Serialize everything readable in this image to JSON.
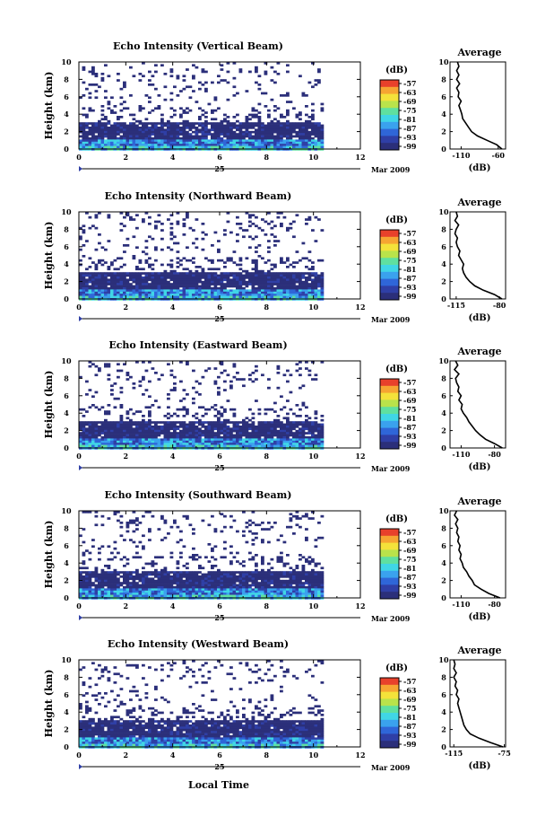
{
  "chart_data": [
    {
      "type": "heatmap",
      "title": "Echo Intensity (Vertical Beam)",
      "ylabel": "Height (km)",
      "xlim": [
        0,
        12
      ],
      "ylim": [
        0,
        10
      ],
      "xticks": [
        "0",
        "2",
        "4",
        "6",
        "8",
        "10",
        "12"
      ],
      "yticks": [
        "0",
        "2",
        "4",
        "6",
        "8",
        "10"
      ],
      "day_label": "25",
      "date_label": "Mar 2009",
      "colorbar": {
        "unit": "(dB)",
        "ticks": [
          "-57",
          "-63",
          "-69",
          "-75",
          "-81",
          "-87",
          "-93",
          "-99"
        ]
      },
      "profile": {
        "title": "Average",
        "xlabel": "(dB)",
        "xlim": [
          -125,
          -50
        ],
        "xticks": [
          "-110",
          "-60"
        ],
        "heights": [
          0,
          0.5,
          1,
          1.5,
          2,
          2.5,
          3,
          3.5,
          4,
          4.5,
          5,
          5.5,
          6,
          6.5,
          7,
          7.5,
          8,
          8.5,
          9,
          9.5,
          10
        ],
        "values": [
          -55,
          -62,
          -75,
          -88,
          -96,
          -100,
          -104,
          -108,
          -109,
          -111,
          -113,
          -110,
          -114,
          -113,
          -116,
          -112,
          -116,
          -113,
          -116,
          -113,
          -115
        ]
      }
    },
    {
      "type": "heatmap",
      "title": "Echo Intensity (Northward Beam)",
      "ylabel": "Height (km)",
      "xlim": [
        0,
        12
      ],
      "ylim": [
        0,
        10
      ],
      "xticks": [
        "0",
        "2",
        "4",
        "6",
        "8",
        "10",
        "12"
      ],
      "yticks": [
        "0",
        "2",
        "4",
        "6",
        "8",
        "10"
      ],
      "day_label": "25",
      "date_label": "Mar 2009",
      "colorbar": {
        "unit": "(dB)",
        "ticks": [
          "-57",
          "-63",
          "-69",
          "-75",
          "-81",
          "-87",
          "-93",
          "-99"
        ]
      },
      "profile": {
        "title": "Average",
        "xlabel": "(dB)",
        "xlim": [
          -120,
          -75
        ],
        "xticks": [
          "-115",
          "-80"
        ],
        "heights": [
          0,
          0.5,
          1,
          1.5,
          2,
          2.5,
          3,
          3.5,
          4,
          4.5,
          5,
          5.5,
          6,
          6.5,
          7,
          7.5,
          8,
          8.5,
          9,
          9.5,
          10
        ],
        "values": [
          -78,
          -84,
          -93,
          -100,
          -104,
          -107,
          -109,
          -110,
          -109,
          -111,
          -113,
          -112,
          -114,
          -115,
          -114,
          -116,
          -115,
          -113,
          -116,
          -114,
          -115
        ]
      }
    },
    {
      "type": "heatmap",
      "title": "Echo Intensity (Eastward Beam)",
      "ylabel": "Height (km)",
      "xlim": [
        0,
        12
      ],
      "ylim": [
        0,
        10
      ],
      "xticks": [
        "0",
        "2",
        "4",
        "6",
        "8",
        "10",
        "12"
      ],
      "yticks": [
        "0",
        "2",
        "4",
        "6",
        "8",
        "10"
      ],
      "day_label": "25",
      "date_label": "Mar 2009",
      "colorbar": {
        "unit": "(dB)",
        "ticks": [
          "-57",
          "-63",
          "-69",
          "-75",
          "-81",
          "-87",
          "-93",
          "-99"
        ]
      },
      "profile": {
        "title": "Average",
        "xlabel": "(dB)",
        "xlim": [
          -120,
          -70
        ],
        "xticks": [
          "-110",
          "-80"
        ],
        "heights": [
          0,
          0.5,
          1,
          1.5,
          2,
          2.5,
          3,
          3.5,
          4,
          4.5,
          5,
          5.5,
          6,
          6.5,
          7,
          7.5,
          8,
          8.5,
          9,
          9.5,
          10
        ],
        "values": [
          -73,
          -80,
          -88,
          -93,
          -97,
          -100,
          -103,
          -105,
          -108,
          -110,
          -109,
          -112,
          -110,
          -113,
          -112,
          -114,
          -115,
          -112,
          -116,
          -113,
          -115
        ]
      }
    },
    {
      "type": "heatmap",
      "title": "Echo Intensity (Southward Beam)",
      "ylabel": "Height (km)",
      "xlim": [
        0,
        12
      ],
      "ylim": [
        0,
        10
      ],
      "xticks": [
        "0",
        "2",
        "4",
        "6",
        "8",
        "10",
        "12"
      ],
      "yticks": [
        "0",
        "2",
        "4",
        "6",
        "8",
        "10"
      ],
      "day_label": "25",
      "date_label": "Mar 2009",
      "colorbar": {
        "unit": "(dB)",
        "ticks": [
          "-57",
          "-63",
          "-69",
          "-75",
          "-81",
          "-87",
          "-93",
          "-99"
        ]
      },
      "profile": {
        "title": "Average",
        "xlabel": "(dB)",
        "xlim": [
          -120,
          -70
        ],
        "xticks": [
          "-110",
          "-80"
        ],
        "heights": [
          0,
          0.5,
          1,
          1.5,
          2,
          2.5,
          3,
          3.5,
          4,
          4.5,
          5,
          5.5,
          6,
          6.5,
          7,
          7.5,
          8,
          8.5,
          9,
          9.5,
          10
        ],
        "values": [
          -75,
          -85,
          -92,
          -98,
          -100,
          -103,
          -105,
          -108,
          -109,
          -111,
          -110,
          -112,
          -111,
          -113,
          -112,
          -114,
          -113,
          -115,
          -113,
          -116,
          -114
        ]
      }
    },
    {
      "type": "heatmap",
      "title": "Echo Intensity (Westward Beam)",
      "ylabel": "Height (km)",
      "xlim": [
        0,
        12
      ],
      "ylim": [
        0,
        10
      ],
      "xticks": [
        "0",
        "2",
        "4",
        "6",
        "8",
        "10",
        "12"
      ],
      "yticks": [
        "0",
        "2",
        "4",
        "6",
        "8",
        "10"
      ],
      "day_label": "25",
      "date_label": "Mar 2009",
      "colorbar": {
        "unit": "(dB)",
        "ticks": [
          "-57",
          "-63",
          "-69",
          "-75",
          "-81",
          "-87",
          "-93",
          "-99"
        ]
      },
      "profile": {
        "title": "Average",
        "xlabel": "(dB)",
        "xlim": [
          -118,
          -74
        ],
        "xticks": [
          "-115",
          "-75"
        ],
        "heights": [
          0,
          0.5,
          1,
          1.5,
          2,
          2.5,
          3,
          3.5,
          4,
          4.5,
          5,
          5.5,
          6,
          6.5,
          7,
          7.5,
          8,
          8.5,
          9,
          9.5,
          10
        ],
        "values": [
          -76,
          -86,
          -95,
          -102,
          -105,
          -107,
          -108,
          -109,
          -110,
          -111,
          -112,
          -111,
          -113,
          -112,
          -114,
          -113,
          -115,
          -113,
          -115,
          -114,
          -115
        ]
      }
    }
  ],
  "x_axis_title": "Local Time",
  "colorbar_colors": [
    "#2b2f7a",
    "#2f3fa6",
    "#2f66d8",
    "#3aa2ee",
    "#40d6e6",
    "#5fe0a0",
    "#b9e34b",
    "#f4e23a",
    "#f6a532",
    "#e8412b"
  ]
}
